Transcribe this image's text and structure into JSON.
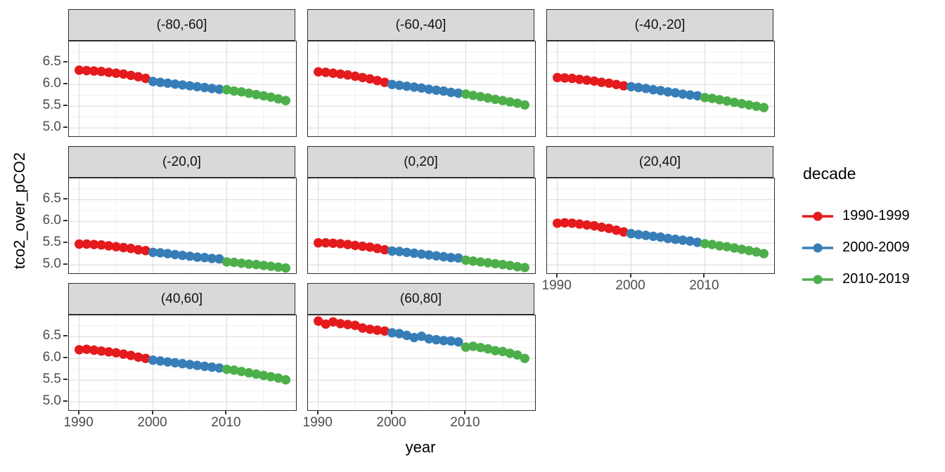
{
  "chart_data": {
    "type": "scatter",
    "xlabel": "year",
    "ylabel": "tco2_over_pCO2",
    "facet_variable": "latitude band",
    "x_ticks": [
      1990,
      2000,
      2010
    ],
    "y_ticks": [
      6.5,
      6.0,
      5.5,
      5.0
    ],
    "x_minor_gridlines": [
      1995,
      2005,
      2015
    ],
    "y_minor_gridlines": [
      6.75,
      6.25,
      5.75,
      5.25
    ],
    "xlim": [
      1988.6,
      2019.4
    ],
    "ylim": [
      4.81,
      6.99
    ],
    "grid": true,
    "years": [
      1990,
      1991,
      1992,
      1993,
      1994,
      1995,
      1996,
      1997,
      1998,
      1999,
      2000,
      2001,
      2002,
      2003,
      2004,
      2005,
      2006,
      2007,
      2008,
      2009,
      2010,
      2011,
      2012,
      2013,
      2014,
      2015,
      2016,
      2017,
      2018
    ],
    "facets": [
      {
        "label": "(-80,-60]",
        "values": [
          6.33,
          6.32,
          6.31,
          6.3,
          6.28,
          6.26,
          6.24,
          6.21,
          6.18,
          6.14,
          6.07,
          6.05,
          6.03,
          6.01,
          5.99,
          5.97,
          5.95,
          5.93,
          5.91,
          5.89,
          5.88,
          5.85,
          5.83,
          5.8,
          5.77,
          5.74,
          5.71,
          5.67,
          5.63
        ]
      },
      {
        "label": "(-60,-40]",
        "values": [
          6.29,
          6.28,
          6.26,
          6.24,
          6.22,
          6.19,
          6.16,
          6.13,
          6.09,
          6.05,
          6.0,
          5.98,
          5.96,
          5.94,
          5.92,
          5.89,
          5.87,
          5.85,
          5.82,
          5.8,
          5.78,
          5.75,
          5.72,
          5.69,
          5.66,
          5.63,
          5.6,
          5.57,
          5.53
        ]
      },
      {
        "label": "(-40,-20]",
        "values": [
          6.16,
          6.15,
          6.14,
          6.12,
          6.1,
          6.08,
          6.05,
          6.03,
          6.0,
          5.97,
          5.95,
          5.93,
          5.91,
          5.88,
          5.86,
          5.83,
          5.81,
          5.78,
          5.76,
          5.74,
          5.7,
          5.68,
          5.65,
          5.62,
          5.59,
          5.56,
          5.53,
          5.5,
          5.47
        ]
      },
      {
        "label": "(-20,0]",
        "values": [
          5.48,
          5.48,
          5.47,
          5.46,
          5.44,
          5.42,
          5.4,
          5.38,
          5.35,
          5.33,
          5.29,
          5.28,
          5.26,
          5.24,
          5.22,
          5.2,
          5.18,
          5.17,
          5.15,
          5.14,
          5.07,
          5.06,
          5.04,
          5.02,
          5.01,
          4.99,
          4.97,
          4.95,
          4.93
        ]
      },
      {
        "label": "(0,20]",
        "values": [
          5.51,
          5.51,
          5.5,
          5.49,
          5.47,
          5.45,
          5.43,
          5.41,
          5.38,
          5.35,
          5.32,
          5.31,
          5.29,
          5.27,
          5.25,
          5.23,
          5.21,
          5.19,
          5.17,
          5.16,
          5.11,
          5.09,
          5.07,
          5.05,
          5.03,
          5.01,
          4.99,
          4.96,
          4.94
        ]
      },
      {
        "label": "(20,40]",
        "values": [
          5.96,
          5.97,
          5.96,
          5.94,
          5.92,
          5.9,
          5.87,
          5.84,
          5.8,
          5.76,
          5.72,
          5.7,
          5.68,
          5.66,
          5.64,
          5.61,
          5.59,
          5.57,
          5.55,
          5.52,
          5.49,
          5.47,
          5.44,
          5.42,
          5.39,
          5.36,
          5.33,
          5.3,
          5.26
        ]
      },
      {
        "label": "(40,60]",
        "values": [
          6.2,
          6.21,
          6.19,
          6.17,
          6.15,
          6.13,
          6.1,
          6.07,
          6.03,
          6.0,
          5.96,
          5.94,
          5.92,
          5.9,
          5.88,
          5.86,
          5.84,
          5.82,
          5.8,
          5.78,
          5.75,
          5.73,
          5.7,
          5.67,
          5.64,
          5.61,
          5.58,
          5.55,
          5.51
        ]
      },
      {
        "label": "(60,80]",
        "values": [
          6.86,
          6.79,
          6.84,
          6.8,
          6.78,
          6.76,
          6.7,
          6.67,
          6.65,
          6.63,
          6.59,
          6.57,
          6.53,
          6.48,
          6.51,
          6.45,
          6.43,
          6.41,
          6.4,
          6.38,
          6.26,
          6.28,
          6.25,
          6.22,
          6.18,
          6.16,
          6.12,
          6.08,
          6.0
        ]
      }
    ],
    "legend": {
      "title": "decade",
      "position": "right",
      "entries": [
        {
          "label": "1990-1999",
          "color": "#E41A1C",
          "year_range": [
            1990,
            1999
          ]
        },
        {
          "label": "2000-2009",
          "color": "#377EB8",
          "year_range": [
            2000,
            2009
          ]
        },
        {
          "label": "2010-2019",
          "color": "#4DAF4A",
          "year_range": [
            2010,
            2019
          ]
        }
      ]
    },
    "style_colors": {
      "strip_background": "#D9D9D9",
      "panel_border": "#2E2E2E",
      "major_grid": "#E2E2E2",
      "minor_grid": "#F0F0F0",
      "tick_label": "#4D4D4D"
    }
  }
}
